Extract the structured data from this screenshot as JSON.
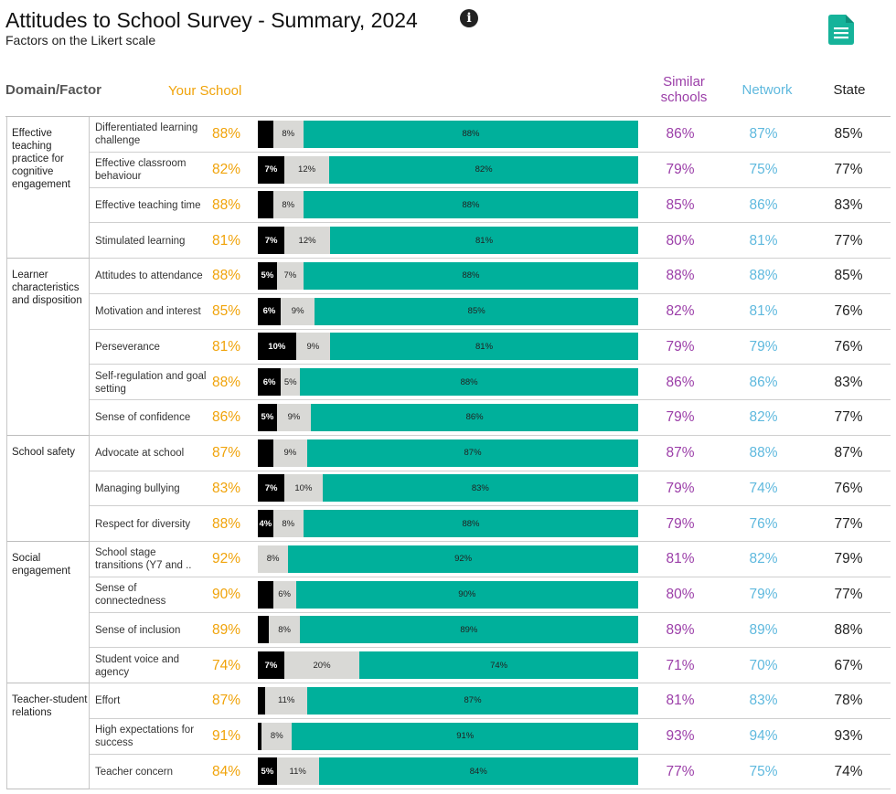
{
  "header": {
    "title": "Attitudes to School Survey - Summary, 2024",
    "subtitle": "Factors on the Likert scale",
    "info_icon": "info-icon",
    "doc_icon": "document-icon"
  },
  "columns": {
    "domain_factor": "Domain/Factor",
    "your_school": "Your School",
    "similar_schools": "Similar schools",
    "network": "Network",
    "state": "State"
  },
  "colors": {
    "negative": "#000000",
    "neutral": "#d9d9d6",
    "positive": "#00b09b",
    "your_school": "#f0a30a",
    "similar": "#9b3ea8",
    "network": "#5fb9de",
    "state": "#222222"
  },
  "chart_data": {
    "type": "bar",
    "stacked": true,
    "orientation": "horizontal",
    "title": "Attitudes to School Survey - Summary, 2024",
    "subtitle": "Factors on the Likert scale",
    "segments": [
      "negative",
      "neutral",
      "positive"
    ],
    "xlim": [
      0,
      100
    ],
    "domains": [
      {
        "name": "Effective teaching practice for cognitive engagement",
        "factors": [
          {
            "name": "Differentiated learning challenge",
            "your_school": "88%",
            "negative": 4,
            "negative_label": "",
            "neutral": 8,
            "neutral_label": "8%",
            "positive": 88,
            "positive_label": "88%",
            "similar": "86%",
            "network": "87%",
            "state": "85%"
          },
          {
            "name": "Effective classroom behaviour",
            "your_school": "82%",
            "negative": 7,
            "negative_label": "7%",
            "neutral": 12,
            "neutral_label": "12%",
            "positive": 82,
            "positive_label": "82%",
            "similar": "79%",
            "network": "75%",
            "state": "77%"
          },
          {
            "name": "Effective teaching time",
            "your_school": "88%",
            "negative": 4,
            "negative_label": "",
            "neutral": 8,
            "neutral_label": "8%",
            "positive": 88,
            "positive_label": "88%",
            "similar": "85%",
            "network": "86%",
            "state": "83%"
          },
          {
            "name": "Stimulated learning",
            "your_school": "81%",
            "negative": 7,
            "negative_label": "7%",
            "neutral": 12,
            "neutral_label": "12%",
            "positive": 81,
            "positive_label": "81%",
            "similar": "80%",
            "network": "81%",
            "state": "77%"
          }
        ]
      },
      {
        "name": "Learner characteristics and disposition",
        "factors": [
          {
            "name": "Attitudes to attendance",
            "your_school": "88%",
            "negative": 5,
            "negative_label": "5%",
            "neutral": 7,
            "neutral_label": "7%",
            "positive": 88,
            "positive_label": "88%",
            "similar": "88%",
            "network": "88%",
            "state": "85%"
          },
          {
            "name": "Motivation and interest",
            "your_school": "85%",
            "negative": 6,
            "negative_label": "6%",
            "neutral": 9,
            "neutral_label": "9%",
            "positive": 85,
            "positive_label": "85%",
            "similar": "82%",
            "network": "81%",
            "state": "76%"
          },
          {
            "name": "Perseverance",
            "your_school": "81%",
            "negative": 10,
            "negative_label": "10%",
            "neutral": 9,
            "neutral_label": "9%",
            "positive": 81,
            "positive_label": "81%",
            "similar": "79%",
            "network": "79%",
            "state": "76%"
          },
          {
            "name": "Self-regulation and goal setting",
            "your_school": "88%",
            "negative": 6,
            "negative_label": "6%",
            "neutral": 5,
            "neutral_label": "5%",
            "positive": 88,
            "positive_label": "88%",
            "similar": "86%",
            "network": "86%",
            "state": "83%"
          },
          {
            "name": "Sense of confidence",
            "your_school": "86%",
            "negative": 5,
            "negative_label": "5%",
            "neutral": 9,
            "neutral_label": "9%",
            "positive": 86,
            "positive_label": "86%",
            "similar": "79%",
            "network": "82%",
            "state": "77%"
          }
        ]
      },
      {
        "name": "School safety",
        "factors": [
          {
            "name": "Advocate at school",
            "your_school": "87%",
            "negative": 4,
            "negative_label": "",
            "neutral": 9,
            "neutral_label": "9%",
            "positive": 87,
            "positive_label": "87%",
            "similar": "87%",
            "network": "88%",
            "state": "87%"
          },
          {
            "name": "Managing bullying",
            "your_school": "83%",
            "negative": 7,
            "negative_label": "7%",
            "neutral": 10,
            "neutral_label": "10%",
            "positive": 83,
            "positive_label": "83%",
            "similar": "79%",
            "network": "74%",
            "state": "76%"
          },
          {
            "name": "Respect for diversity",
            "your_school": "88%",
            "negative": 4,
            "negative_label": "4%",
            "neutral": 8,
            "neutral_label": "8%",
            "positive": 88,
            "positive_label": "88%",
            "similar": "79%",
            "network": "76%",
            "state": "77%"
          }
        ]
      },
      {
        "name": "Social engagement",
        "factors": [
          {
            "name": "School stage transitions (Y7 and ..",
            "your_school": "92%",
            "negative": 0,
            "negative_label": "",
            "neutral": 8,
            "neutral_label": "8%",
            "positive": 92,
            "positive_label": "92%",
            "similar": "81%",
            "network": "82%",
            "state": "79%"
          },
          {
            "name": "Sense of connectedness",
            "your_school": "90%",
            "negative": 4,
            "negative_label": "",
            "neutral": 6,
            "neutral_label": "6%",
            "positive": 90,
            "positive_label": "90%",
            "similar": "80%",
            "network": "79%",
            "state": "77%"
          },
          {
            "name": "Sense of inclusion",
            "your_school": "89%",
            "negative": 3,
            "negative_label": "",
            "neutral": 8,
            "neutral_label": "8%",
            "positive": 89,
            "positive_label": "89%",
            "similar": "89%",
            "network": "89%",
            "state": "88%"
          },
          {
            "name": "Student voice and agency",
            "your_school": "74%",
            "negative": 7,
            "negative_label": "7%",
            "neutral": 20,
            "neutral_label": "20%",
            "positive": 74,
            "positive_label": "74%",
            "similar": "71%",
            "network": "70%",
            "state": "67%"
          }
        ]
      },
      {
        "name": "Teacher-student relations",
        "factors": [
          {
            "name": "Effort",
            "your_school": "87%",
            "negative": 2,
            "negative_label": "",
            "neutral": 11,
            "neutral_label": "11%",
            "positive": 87,
            "positive_label": "87%",
            "similar": "81%",
            "network": "83%",
            "state": "78%"
          },
          {
            "name": "High expectations for success",
            "your_school": "91%",
            "negative": 1,
            "negative_label": "",
            "neutral": 8,
            "neutral_label": "8%",
            "positive": 91,
            "positive_label": "91%",
            "similar": "93%",
            "network": "94%",
            "state": "93%"
          },
          {
            "name": "Teacher concern",
            "your_school": "84%",
            "negative": 5,
            "negative_label": "5%",
            "neutral": 11,
            "neutral_label": "11%",
            "positive": 84,
            "positive_label": "84%",
            "similar": "77%",
            "network": "75%",
            "state": "74%"
          }
        ]
      }
    ]
  }
}
